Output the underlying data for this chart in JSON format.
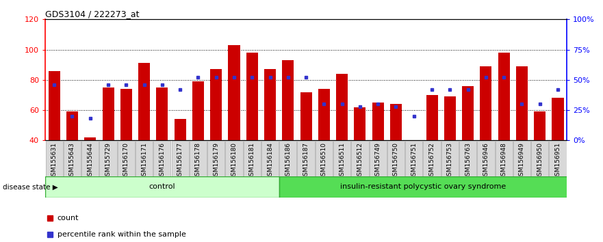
{
  "title": "GDS3104 / 222273_at",
  "samples": [
    "GSM155631",
    "GSM155643",
    "GSM155644",
    "GSM155729",
    "GSM156170",
    "GSM156171",
    "GSM156176",
    "GSM156177",
    "GSM156178",
    "GSM156179",
    "GSM156180",
    "GSM156181",
    "GSM156184",
    "GSM156186",
    "GSM156187",
    "GSM156510",
    "GSM156511",
    "GSM156512",
    "GSM156749",
    "GSM156750",
    "GSM156751",
    "GSM156752",
    "GSM156753",
    "GSM156763",
    "GSM156946",
    "GSM156948",
    "GSM156949",
    "GSM156950",
    "GSM156951"
  ],
  "bar_heights": [
    86,
    59,
    42,
    75,
    74,
    91,
    75,
    54,
    79,
    87,
    103,
    98,
    87,
    93,
    72,
    74,
    84,
    62,
    65,
    64,
    40,
    70,
    69,
    76,
    89,
    98,
    89,
    59,
    68
  ],
  "blue_values_pct": [
    46,
    20,
    18,
    46,
    46,
    46,
    46,
    42,
    52,
    52,
    52,
    52,
    52,
    52,
    52,
    30,
    30,
    28,
    30,
    28,
    20,
    42,
    42,
    42,
    52,
    52,
    30,
    30,
    42
  ],
  "control_count": 13,
  "ylim_left": [
    40,
    120
  ],
  "ylim_right": [
    0,
    100
  ],
  "right_ticks": [
    0,
    25,
    50,
    75,
    100
  ],
  "right_tick_labels": [
    "0%",
    "25%",
    "50%",
    "75%",
    "100%"
  ],
  "left_ticks": [
    40,
    60,
    80,
    100,
    120
  ],
  "bar_color": "#cc0000",
  "blue_color": "#3333cc",
  "control_color": "#ccffcc",
  "syndrome_color": "#55dd55",
  "bg_color": "#d8d8d8",
  "plot_bg": "#ffffff",
  "label_fontsize": 6.5
}
